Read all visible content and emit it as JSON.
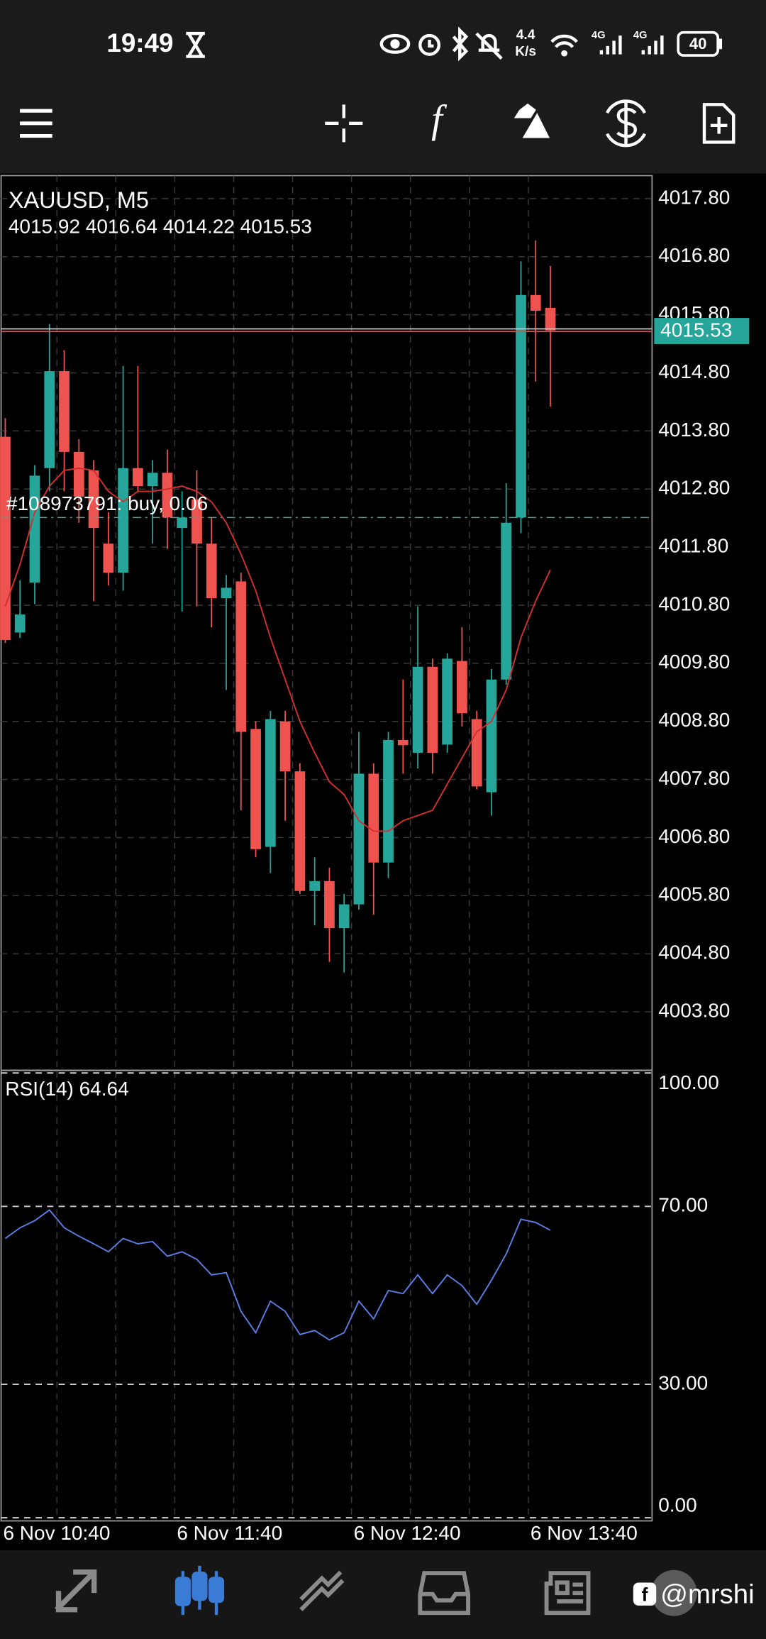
{
  "status_bar": {
    "time": "19:49",
    "net_speed_value": "4.4",
    "net_speed_unit": "K/s",
    "signal_1": "4G",
    "signal_2": "4G",
    "battery": "40"
  },
  "watermark": "@mrshi",
  "chart_data": [
    {
      "type": "candlestick",
      "title": "XAUUSD, M5",
      "subtitle": "4015.92 4016.64 4014.22 4015.53",
      "categories": [
        "6 Nov 10:40",
        null,
        null,
        null,
        null,
        null,
        null,
        null,
        null,
        null,
        null,
        null,
        "6 Nov 11:40",
        null,
        null,
        null,
        null,
        null,
        null,
        null,
        null,
        null,
        null,
        null,
        "6 Nov 12:40",
        null,
        null,
        null,
        null,
        null,
        null,
        null,
        null,
        null,
        null,
        null,
        "6 Nov 13:40",
        null
      ],
      "open": [
        4013.7,
        4010.33,
        4011.19,
        4013.16,
        4014.83,
        4013.44,
        4013.12,
        4011.86,
        4011.36,
        4013.16,
        4012.85,
        4013.08,
        4012.13,
        4012.62,
        4011.86,
        4010.92,
        4011.21,
        4008.67,
        4006.64,
        4008.8,
        4007.94,
        4005.88,
        4006.05,
        4005.24,
        4005.65,
        4007.9,
        4006.37,
        4008.48,
        4008.26,
        4009.74,
        4008.4,
        4009.84,
        4008.84,
        4007.58,
        4009.52,
        4012.31,
        4016.14,
        4015.92
      ],
      "high": [
        4014.02,
        4011.23,
        4013.21,
        4015.64,
        4015.19,
        4013.66,
        4013.3,
        4012.4,
        4014.92,
        4014.92,
        4013.3,
        4013.48,
        4012.76,
        4013.12,
        4012.31,
        4011.32,
        4011.36,
        4008.8,
        4008.98,
        4008.98,
        4008.08,
        4006.46,
        4006.28,
        4005.83,
        4008.62,
        4008.08,
        4008.62,
        4009.52,
        4010.78,
        4009.88,
        4009.97,
        4010.42,
        4008.98,
        4009.7,
        4012.9,
        4016.72,
        4017.08,
        4016.64
      ],
      "low": [
        4010.15,
        4010.24,
        4010.82,
        4012.76,
        4012.76,
        4012.22,
        4010.87,
        4011.14,
        4011.05,
        4012.76,
        4011.86,
        4011.77,
        4010.69,
        4010.78,
        4010.42,
        4009.34,
        4007.27,
        4006.46,
        4006.19,
        4007.09,
        4005.83,
        4005.29,
        4004.66,
        4004.48,
        4005.56,
        4005.47,
        4006.1,
        4007.9,
        4007.99,
        4007.9,
        4008.26,
        4008.71,
        4007.63,
        4007.18,
        4009.43,
        4012.04,
        4014.65,
        4014.22
      ],
      "close": [
        4010.2,
        4010.64,
        4013.03,
        4014.83,
        4013.44,
        4012.67,
        4012.13,
        4011.36,
        4013.16,
        4012.85,
        4013.08,
        4012.31,
        4012.31,
        4011.86,
        4010.92,
        4011.1,
        4008.62,
        4006.6,
        4008.84,
        4007.94,
        4005.88,
        4006.05,
        4005.24,
        4005.65,
        4007.9,
        4006.37,
        4008.48,
        4008.39,
        4009.74,
        4008.26,
        4009.88,
        4008.94,
        4007.68,
        4009.52,
        4012.22,
        4016.14,
        4015.87,
        4015.53
      ],
      "up_color": "#26a69a",
      "down_color": "#ef5350",
      "series": [
        {
          "color": "#d32f2f",
          "values": [
            4010.78,
            4011.5,
            4012.4,
            4012.85,
            4013.12,
            4013.16,
            4013.12,
            4012.76,
            4012.58,
            4012.76,
            4012.76,
            4012.8,
            4012.85,
            4012.76,
            4012.58,
            4012.22,
            4011.68,
            4011.05,
            4010.24,
            4009.52,
            4008.8,
            4008.26,
            4007.76,
            4007.54,
            4007.09,
            4006.91,
            4006.91,
            4007.09,
            4007.18,
            4007.27,
            4007.72,
            4008.17,
            4008.62,
            4008.8,
            4009.34,
            4010.24,
            4010.87,
            4011.41
          ]
        }
      ],
      "ylim": [
        4002.81,
        4018.196
      ],
      "yticks": [
        {
          "value": 4017.8,
          "label": "4017.80"
        },
        {
          "value": 4016.8,
          "label": "4016.80"
        },
        {
          "value": 4015.8,
          "label": "4015.80"
        },
        {
          "value": 4014.8,
          "label": "4014.80"
        },
        {
          "value": 4013.8,
          "label": "4013.80"
        },
        {
          "value": 4012.8,
          "label": "4012.80"
        },
        {
          "value": 4011.8,
          "label": "4011.80"
        },
        {
          "value": 4010.8,
          "label": "4010.80"
        },
        {
          "value": 4009.8,
          "label": "4009.80"
        },
        {
          "value": 4008.8,
          "label": "4008.80"
        },
        {
          "value": 4007.8,
          "label": "4007.80"
        },
        {
          "value": 4006.8,
          "label": "4006.80"
        },
        {
          "value": 4005.8,
          "label": "4005.80"
        },
        {
          "value": 4004.8,
          "label": "4004.80"
        },
        {
          "value": 4003.8,
          "label": "4003.80"
        }
      ],
      "grid": true,
      "current_price": 4015.53,
      "current_price_color": "#26a69a",
      "order_label": "#108973791: buy, 0.06",
      "order_price": 4012.31
    },
    {
      "type": "line",
      "title": "RSI(14) 64.64",
      "series": [
        {
          "color": "#5b7ee5",
          "values": [
            62.8,
            65.2,
            66.8,
            69.2,
            65.2,
            63.3,
            61.6,
            59.8,
            62.8,
            61.6,
            62.1,
            58.8,
            59.8,
            58.1,
            54.6,
            55.1,
            46.4,
            41.6,
            48.7,
            46.4,
            41.2,
            42.1,
            40.0,
            41.6,
            48.7,
            44.7,
            51.1,
            50.4,
            54.6,
            50.4,
            54.6,
            52.2,
            48.0,
            53.4,
            59.3,
            67.1,
            66.4,
            64.64
          ]
        }
      ],
      "ylim": [
        -0.7,
        100.35
      ],
      "yticks": [
        {
          "value": 100,
          "label": "100.00"
        },
        {
          "value": 70,
          "label": "70.00"
        },
        {
          "value": 30,
          "label": "30.00"
        },
        {
          "value": 0,
          "label": "0.00"
        }
      ],
      "grid": true
    }
  ]
}
